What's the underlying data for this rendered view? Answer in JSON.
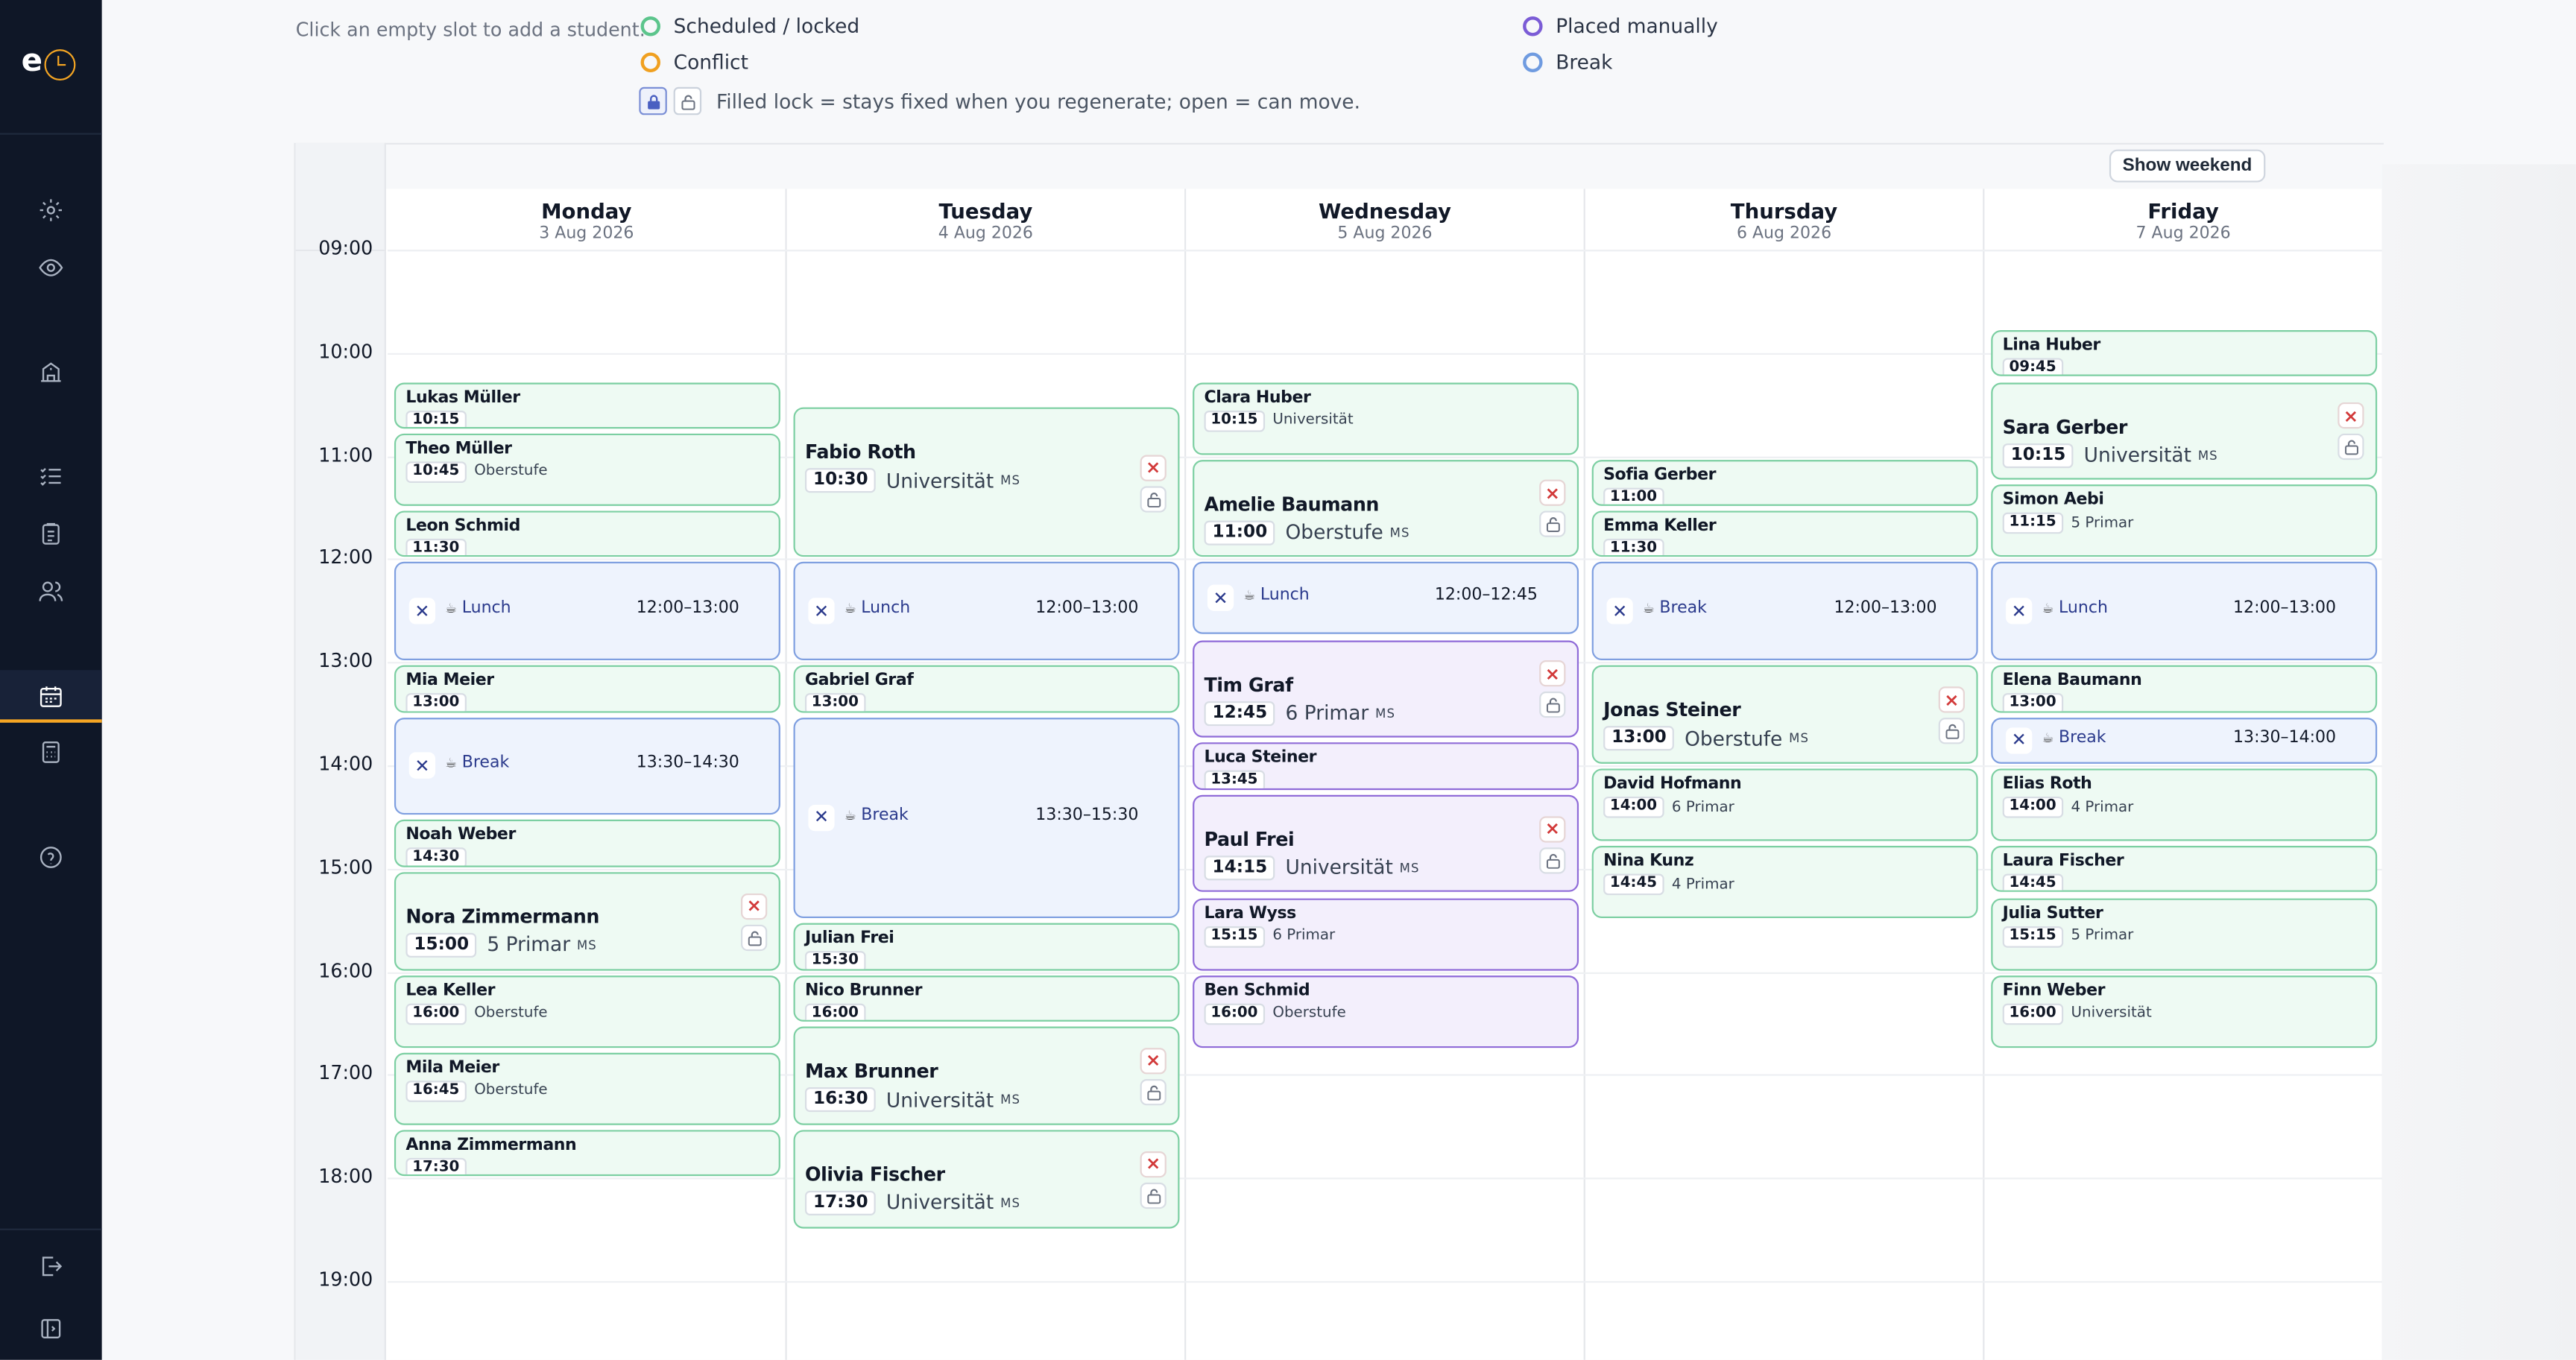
{
  "sidebar": {
    "logo_letter": "e",
    "icons": [
      "gear-icon",
      "eye-icon",
      "school-icon",
      "checklist-icon",
      "clipboard-icon",
      "users-icon",
      "calendar-icon",
      "calculator-icon",
      "help-icon",
      "logout-icon",
      "collapse-sidebar-icon"
    ],
    "active": "calendar-icon"
  },
  "legend": {
    "hint": "Click an empty slot to add a student.",
    "scheduled": "Scheduled / locked",
    "conflict": "Conflict",
    "manual": "Placed manually",
    "break": "Break",
    "lock_note": "Filled lock = stays fixed when you regenerate; open = can move.",
    "colors": {
      "scheduled": "#5cc58c",
      "conflict": "#f0a020",
      "manual": "#7b5cd6",
      "break": "#6f9be0"
    }
  },
  "calendar": {
    "show_weekend_label": "Show weekend",
    "hours": [
      "09:00",
      "10:00",
      "11:00",
      "12:00",
      "13:00",
      "14:00",
      "15:00",
      "16:00",
      "17:00",
      "18:00",
      "19:00"
    ],
    "days": [
      {
        "name": "Monday",
        "date": "3 Aug 2026"
      },
      {
        "name": "Tuesday",
        "date": "4 Aug 2026"
      },
      {
        "name": "Wednesday",
        "date": "5 Aug 2026"
      },
      {
        "name": "Thursday",
        "date": "6 Aug 2026"
      },
      {
        "name": "Friday",
        "date": "7 Aug 2026"
      }
    ],
    "events": [
      {
        "day": 0,
        "kind": "scheduled",
        "name": "Lukas Müller",
        "time": "10:15",
        "start": "10:15",
        "end": "10:45"
      },
      {
        "day": 0,
        "kind": "scheduled",
        "name": "Theo Müller",
        "time": "10:45",
        "level": "Oberstufe",
        "start": "10:45",
        "end": "11:30"
      },
      {
        "day": 0,
        "kind": "scheduled",
        "name": "Leon Schmid",
        "time": "11:30",
        "start": "11:30",
        "end": "12:00"
      },
      {
        "day": 0,
        "kind": "break",
        "label": "Lunch",
        "range": "12:00–13:00",
        "start": "12:00",
        "end": "13:00"
      },
      {
        "day": 0,
        "kind": "scheduled",
        "name": "Mia Meier",
        "time": "13:00",
        "start": "13:00",
        "end": "13:30"
      },
      {
        "day": 0,
        "kind": "break",
        "label": "Break",
        "range": "13:30–14:30",
        "start": "13:30",
        "end": "14:30"
      },
      {
        "day": 0,
        "kind": "scheduled",
        "name": "Noah Weber",
        "time": "14:30",
        "start": "14:30",
        "end": "15:00"
      },
      {
        "day": 0,
        "kind": "scheduled",
        "big": true,
        "name": "Nora Zimmermann",
        "time": "15:00",
        "level": "5 Primar",
        "ms": "MS",
        "start": "15:00",
        "end": "16:00"
      },
      {
        "day": 0,
        "kind": "scheduled",
        "name": "Lea Keller",
        "time": "16:00",
        "level": "Oberstufe",
        "start": "16:00",
        "end": "16:45"
      },
      {
        "day": 0,
        "kind": "scheduled",
        "name": "Mila Meier",
        "time": "16:45",
        "level": "Oberstufe",
        "start": "16:45",
        "end": "17:30"
      },
      {
        "day": 0,
        "kind": "scheduled",
        "name": "Anna Zimmermann",
        "time": "17:30",
        "start": "17:30",
        "end": "18:00"
      },
      {
        "day": 1,
        "kind": "scheduled",
        "big": true,
        "name": "Fabio Roth",
        "time": "10:30",
        "level": "Universität",
        "ms": "MS",
        "start": "10:30",
        "end": "12:00"
      },
      {
        "day": 1,
        "kind": "break",
        "label": "Lunch",
        "range": "12:00–13:00",
        "start": "12:00",
        "end": "13:00"
      },
      {
        "day": 1,
        "kind": "scheduled",
        "name": "Gabriel Graf",
        "time": "13:00",
        "start": "13:00",
        "end": "13:30"
      },
      {
        "day": 1,
        "kind": "break",
        "label": "Break",
        "range": "13:30–15:30",
        "start": "13:30",
        "end": "15:30"
      },
      {
        "day": 1,
        "kind": "scheduled",
        "name": "Julian Frei",
        "time": "15:30",
        "start": "15:30",
        "end": "16:00"
      },
      {
        "day": 1,
        "kind": "scheduled",
        "name": "Nico Brunner",
        "time": "16:00",
        "start": "16:00",
        "end": "16:30"
      },
      {
        "day": 1,
        "kind": "scheduled",
        "big": true,
        "name": "Max Brunner",
        "time": "16:30",
        "level": "Universität",
        "ms": "MS",
        "start": "16:30",
        "end": "17:30"
      },
      {
        "day": 1,
        "kind": "scheduled",
        "big": true,
        "name": "Olivia Fischer",
        "time": "17:30",
        "level": "Universität",
        "ms": "MS",
        "start": "17:30",
        "end": "18:30"
      },
      {
        "day": 2,
        "kind": "scheduled",
        "name": "Clara Huber",
        "time": "10:15",
        "level": "Universität",
        "start": "10:15",
        "end": "11:00"
      },
      {
        "day": 2,
        "kind": "scheduled",
        "big": true,
        "name": "Amelie Baumann",
        "time": "11:00",
        "level": "Oberstufe",
        "ms": "MS",
        "start": "11:00",
        "end": "12:00"
      },
      {
        "day": 2,
        "kind": "break",
        "label": "Lunch",
        "range": "12:00–12:45",
        "start": "12:00",
        "end": "12:45"
      },
      {
        "day": 2,
        "kind": "manual",
        "big": true,
        "name": "Tim Graf",
        "time": "12:45",
        "level": "6 Primar",
        "ms": "MS",
        "start": "12:45",
        "end": "13:45"
      },
      {
        "day": 2,
        "kind": "manual",
        "name": "Luca Steiner",
        "time": "13:45",
        "start": "13:45",
        "end": "14:15"
      },
      {
        "day": 2,
        "kind": "manual",
        "big": true,
        "name": "Paul Frei",
        "time": "14:15",
        "level": "Universität",
        "ms": "MS",
        "start": "14:15",
        "end": "15:15"
      },
      {
        "day": 2,
        "kind": "manual",
        "name": "Lara Wyss",
        "time": "15:15",
        "level": "6 Primar",
        "start": "15:15",
        "end": "16:00"
      },
      {
        "day": 2,
        "kind": "manual",
        "name": "Ben Schmid",
        "time": "16:00",
        "level": "Oberstufe",
        "start": "16:00",
        "end": "16:45"
      },
      {
        "day": 3,
        "kind": "scheduled",
        "name": "Sofia Gerber",
        "time": "11:00",
        "start": "11:00",
        "end": "11:30"
      },
      {
        "day": 3,
        "kind": "scheduled",
        "name": "Emma Keller",
        "time": "11:30",
        "start": "11:30",
        "end": "12:00"
      },
      {
        "day": 3,
        "kind": "break",
        "label": "Break",
        "range": "12:00–13:00",
        "start": "12:00",
        "end": "13:00"
      },
      {
        "day": 3,
        "kind": "scheduled",
        "big": true,
        "name": "Jonas Steiner",
        "time": "13:00",
        "level": "Oberstufe",
        "ms": "MS",
        "start": "13:00",
        "end": "14:00"
      },
      {
        "day": 3,
        "kind": "scheduled",
        "name": "David Hofmann",
        "time": "14:00",
        "level": "6 Primar",
        "start": "14:00",
        "end": "14:45"
      },
      {
        "day": 3,
        "kind": "scheduled",
        "name": "Nina Kunz",
        "time": "14:45",
        "level": "4 Primar",
        "start": "14:45",
        "end": "15:30"
      },
      {
        "day": 4,
        "kind": "scheduled",
        "name": "Lina Huber",
        "time": "09:45",
        "start": "09:45",
        "end": "10:15"
      },
      {
        "day": 4,
        "kind": "scheduled",
        "big": true,
        "name": "Sara Gerber",
        "time": "10:15",
        "level": "Universität",
        "ms": "MS",
        "start": "10:15",
        "end": "11:15"
      },
      {
        "day": 4,
        "kind": "scheduled",
        "name": "Simon Aebi",
        "time": "11:15",
        "level": "5 Primar",
        "start": "11:15",
        "end": "12:00"
      },
      {
        "day": 4,
        "kind": "break",
        "label": "Lunch",
        "range": "12:00–13:00",
        "start": "12:00",
        "end": "13:00"
      },
      {
        "day": 4,
        "kind": "scheduled",
        "name": "Elena Baumann",
        "time": "13:00",
        "start": "13:00",
        "end": "13:30"
      },
      {
        "day": 4,
        "kind": "break",
        "label": "Break",
        "range": "13:30–14:00",
        "start": "13:30",
        "end": "14:00"
      },
      {
        "day": 4,
        "kind": "scheduled",
        "name": "Elias Roth",
        "time": "14:00",
        "level": "4 Primar",
        "start": "14:00",
        "end": "14:45"
      },
      {
        "day": 4,
        "kind": "scheduled",
        "name": "Laura Fischer",
        "time": "14:45",
        "start": "14:45",
        "end": "15:15"
      },
      {
        "day": 4,
        "kind": "scheduled",
        "name": "Julia Sutter",
        "time": "15:15",
        "level": "5 Primar",
        "start": "15:15",
        "end": "16:00"
      },
      {
        "day": 4,
        "kind": "scheduled",
        "name": "Finn Weber",
        "time": "16:00",
        "level": "Universität",
        "start": "16:00",
        "end": "16:45"
      }
    ]
  }
}
